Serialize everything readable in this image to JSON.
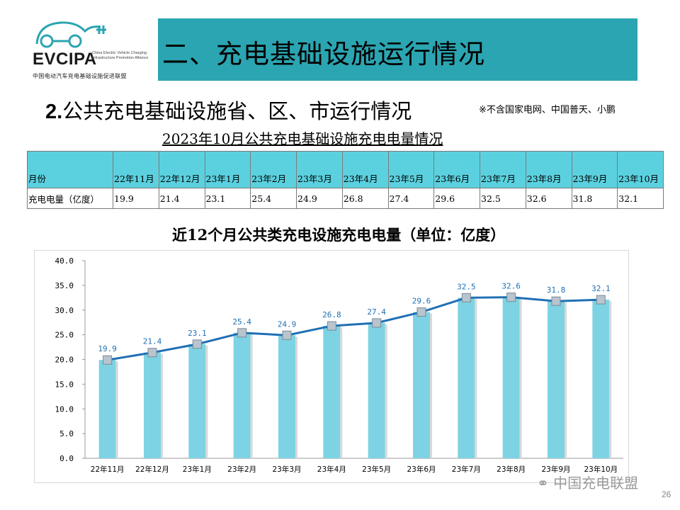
{
  "logo": {
    "brand": "EVCIPA",
    "english": "China Electric Vehicle Charging Infrastructure Promotion Alliance",
    "chinese": "中国电动汽车充电基础设施促进联盟"
  },
  "header": {
    "title": "二、充电基础设施运行情况",
    "subtitle_num": "2.",
    "subtitle_text": "公共充电基础设施省、区、市运行情况",
    "note": "※不含国家电网、中国普天、小鹏"
  },
  "table": {
    "title": "2023年10月公共充电基础设施充电电量情况",
    "row_labels": [
      "月份",
      "充电电量（亿度）"
    ],
    "months": [
      "22年11月",
      "22年12月",
      "23年1月",
      "23年2月",
      "23年3月",
      "23年4月",
      "23年5月",
      "23年6月",
      "23年7月",
      "23年8月",
      "23年9月",
      "23年10月"
    ],
    "values": [
      "19.9",
      "21.4",
      "23.1",
      "25.4",
      "24.9",
      "26.8",
      "27.4",
      "29.6",
      "32.5",
      "32.6",
      "31.8",
      "32.1"
    ]
  },
  "chart_data": {
    "type": "bar",
    "title": "近12个月公共类充电设施充电电量（单位：亿度）",
    "categories": [
      "22年11月",
      "22年12月",
      "23年1月",
      "23年2月",
      "23年3月",
      "23年4月",
      "23年5月",
      "23年6月",
      "23年7月",
      "23年8月",
      "23年9月",
      "23年10月"
    ],
    "series": [
      {
        "values": [
          19.9,
          21.4,
          23.1,
          25.4,
          24.9,
          26.8,
          27.4,
          29.6,
          32.5,
          32.6,
          31.8,
          32.1
        ],
        "render": "bar",
        "color": "#7dd3e3"
      },
      {
        "values": [
          19.9,
          21.4,
          23.1,
          25.4,
          24.9,
          26.8,
          27.4,
          29.6,
          32.5,
          32.6,
          31.8,
          32.1
        ],
        "render": "line",
        "color": "#1f6fb4"
      }
    ],
    "data_labels": [
      "19.9",
      "21.4",
      "23.1",
      "25.4",
      "24.9",
      "26.8",
      "27.4",
      "29.6",
      "32.5",
      "32.6",
      "31.8",
      "32.1"
    ],
    "yticks": [
      "0.0",
      "5.0",
      "10.0",
      "15.0",
      "20.0",
      "25.0",
      "30.0",
      "35.0",
      "40.0"
    ],
    "ylim": [
      0,
      40
    ],
    "xlabel": "",
    "ylabel": "",
    "grid": false,
    "legend": "none"
  },
  "footer": {
    "wechat": "中国充电联盟",
    "page": "26"
  }
}
